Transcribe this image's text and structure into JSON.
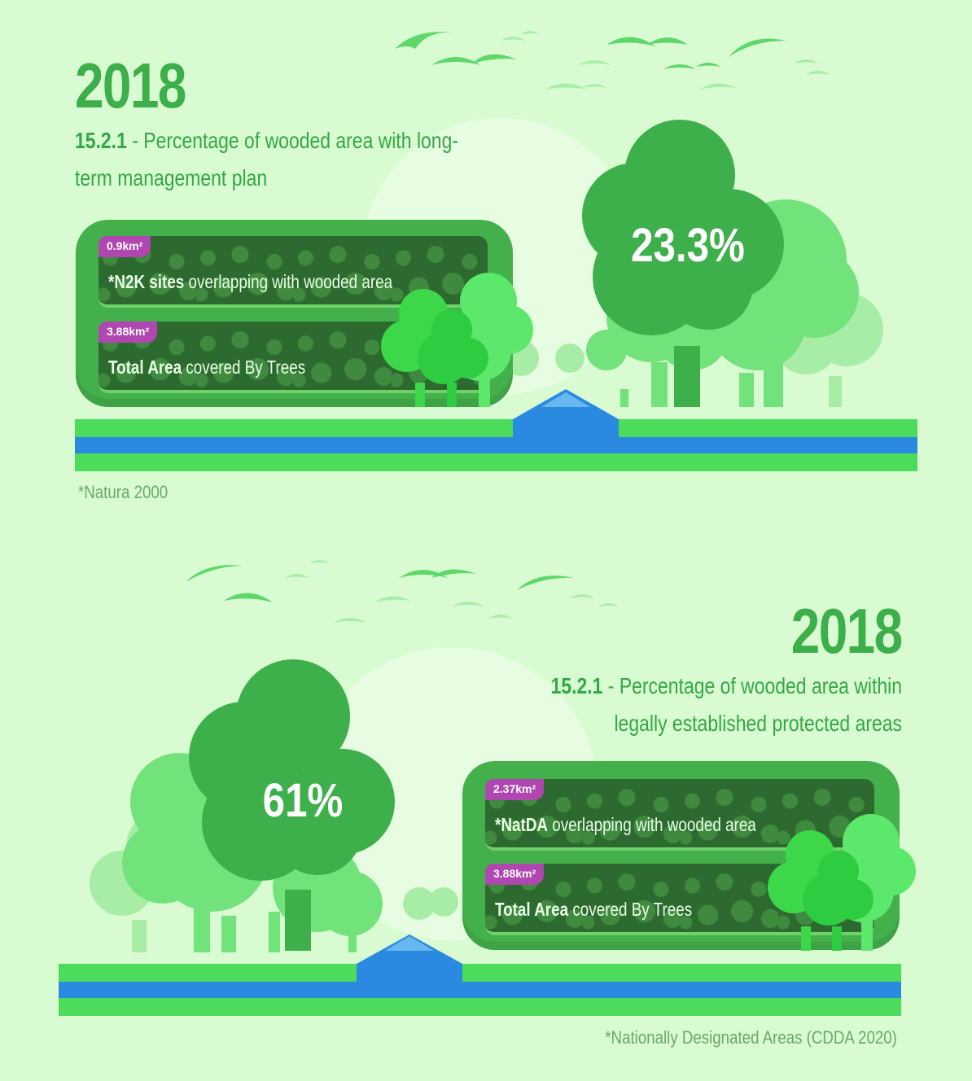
{
  "colors": {
    "background": "#d9fbd2",
    "title_green": "#3daf4a",
    "tree_dark": "#3db04c",
    "grass": "#4ddb5c",
    "water": "#2a8ae0",
    "badge": "#b046b0"
  },
  "panel1": {
    "year": "2018",
    "heading_code": "15.2.1",
    "heading_text": " - Percentage of wooded area with long-term management plan",
    "percentage": "23.3%",
    "items": [
      {
        "badge": "0.9km²",
        "bold": "*N2K sites",
        "text": " overlapping with wooded area"
      },
      {
        "badge": "3.88km²",
        "bold": "Total Area",
        "text": " covered By Trees"
      }
    ],
    "footnote": "*Natura 2000"
  },
  "panel2": {
    "year": "2018",
    "heading_code": "15.2.1",
    "heading_text": " - Percentage of wooded area within legally established protected areas",
    "percentage": "61%",
    "items": [
      {
        "badge": "2.37km²",
        "bold": "*NatDA",
        "text": " overlapping with wooded area"
      },
      {
        "badge": "3.88km²",
        "bold": "Total Area",
        "text": " covered By Trees"
      }
    ],
    "footnote": "*Nationally Designated Areas (CDDA 2020)"
  }
}
